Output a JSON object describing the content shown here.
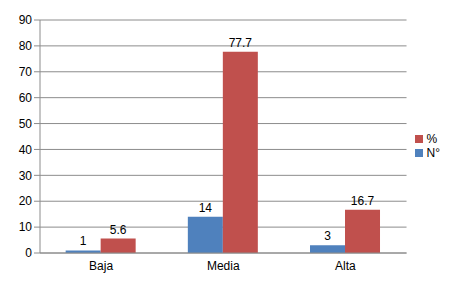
{
  "chart_data": {
    "type": "bar",
    "categories": [
      "Baja",
      "Media",
      "Alta"
    ],
    "series": [
      {
        "name": "N°",
        "color": "#4f81bd",
        "values": [
          1,
          14,
          3
        ]
      },
      {
        "name": "%",
        "color": "#c0504d",
        "values": [
          5.6,
          77.7,
          16.7
        ]
      }
    ],
    "ylim": [
      0,
      90
    ],
    "yticks": [
      0,
      10,
      20,
      30,
      40,
      50,
      60,
      70,
      80,
      90
    ],
    "grid": true,
    "legend": "right",
    "data_labels": true
  }
}
